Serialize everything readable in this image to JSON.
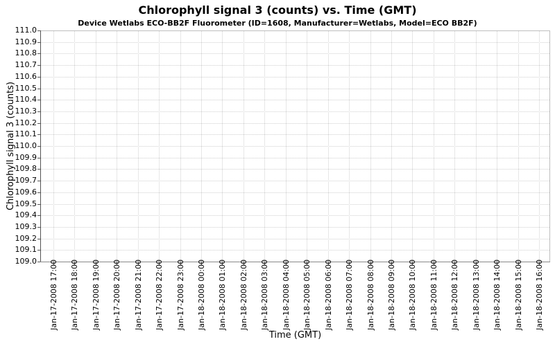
{
  "chart_data": {
    "type": "line",
    "title": "Chlorophyll signal 3 (counts) vs. Time (GMT)",
    "subtitle": "Device Wetlabs ECO-BB2F Fluorometer (ID=1608, Manufacturer=Wetlabs, Model=ECO BB2F)",
    "xlabel": "Time (GMT)",
    "ylabel": "Chlorophyll signal 3 (counts)",
    "ylim": [
      109.0,
      111.0
    ],
    "y_tick_step": 0.1,
    "y_tick_labels": [
      "111.0",
      "110.9",
      "110.8",
      "110.7",
      "110.6",
      "110.5",
      "110.4",
      "110.3",
      "110.2",
      "110.1",
      "110.0",
      "109.9",
      "109.8",
      "109.7",
      "109.6",
      "109.5",
      "109.4",
      "109.3",
      "109.2",
      "109.1",
      "109.0"
    ],
    "x_tick_labels": [
      "Jan-17-2008 17:00",
      "Jan-17-2008 18:00",
      "Jan-17-2008 19:00",
      "Jan-17-2008 20:00",
      "Jan-17-2008 21:00",
      "Jan-17-2008 22:00",
      "Jan-17-2008 23:00",
      "Jan-18-2008 00:00",
      "Jan-18-2008 01:00",
      "Jan-18-2008 02:00",
      "Jan-18-2008 03:00",
      "Jan-18-2008 04:00",
      "Jan-18-2008 05:00",
      "Jan-18-2008 06:00",
      "Jan-18-2008 07:00",
      "Jan-18-2008 08:00",
      "Jan-18-2008 09:00",
      "Jan-18-2008 10:00",
      "Jan-18-2008 11:00",
      "Jan-18-2008 12:00",
      "Jan-18-2008 13:00",
      "Jan-18-2008 14:00",
      "Jan-18-2008 15:00",
      "Jan-18-2008 16:00"
    ],
    "series": [],
    "grid": "dotted",
    "legend": "none"
  },
  "colors": {
    "title_text": "#000000",
    "tick_text": "#000000",
    "gridline": "#cfcfcf",
    "plot_border": "#bfbfbf",
    "y_axis_line": "#555555",
    "x_axis_line": "#888888",
    "tick_mark": "#555555",
    "background": "#ffffff"
  }
}
